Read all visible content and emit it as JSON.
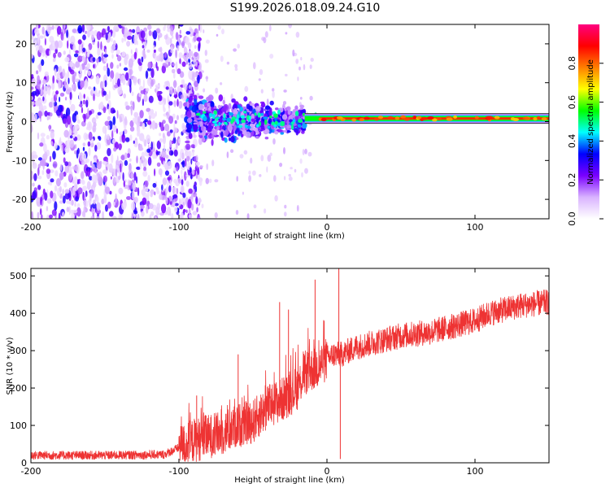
{
  "figure": {
    "title": "S199.2026.018.09.24.G10"
  },
  "chart_data": [
    {
      "type": "heatmap",
      "name": "spectrogram",
      "title": "",
      "xlabel": "Height of straight line (km)",
      "ylabel": "Frequency (Hz)",
      "xlim": [
        -200,
        150
      ],
      "ylim": [
        -25,
        25
      ],
      "xticks": [
        -200,
        -100,
        0,
        100
      ],
      "xtick_labels": [
        "-200",
        "-100",
        "0",
        "100"
      ],
      "yticks": [
        -20,
        -10,
        0,
        10,
        20
      ],
      "ytick_labels": [
        "-20",
        "-10",
        "0",
        "10",
        "20"
      ],
      "colorbar": {
        "label": "Normalized spectral amplitude",
        "range": [
          0,
          1
        ],
        "ticks": [
          0,
          0.2,
          0.4,
          0.6,
          0.8
        ],
        "tick_labels": [
          "0.0",
          "0.2",
          "0.4",
          "0.6",
          "0.8"
        ],
        "colors": [
          "#ffffff",
          "#d9b3ff",
          "#7a00ff",
          "#0000ff",
          "#00ffff",
          "#00ff00",
          "#ffff00",
          "#ff8000",
          "#ff0000",
          "#ff0080"
        ]
      },
      "regions": [
        {
          "x_range": [
            -200,
            -95
          ],
          "description_level": "noise",
          "amplitude": 0.15
        },
        {
          "x_range": [
            -95,
            -15
          ],
          "center_hz": 0.5,
          "spread_hz": 4,
          "amplitude": 0.3
        },
        {
          "x_range": [
            -15,
            150
          ],
          "center_hz": 0.8,
          "spread_hz": 0.7,
          "amplitude": 0.85
        }
      ],
      "line_value_hz": 0.8
    },
    {
      "type": "line",
      "name": "snr",
      "title": "",
      "xlabel": "Height of straight line (km)",
      "ylabel": "SNR (10 * v/v)",
      "xlim": [
        -200,
        150
      ],
      "ylim": [
        0,
        520
      ],
      "xticks": [
        -200,
        -100,
        0,
        100
      ],
      "xtick_labels": [
        "-200",
        "-100",
        "0",
        "100"
      ],
      "yticks": [
        0,
        100,
        200,
        300,
        400,
        500
      ],
      "ytick_labels": [
        "0",
        "100",
        "200",
        "300",
        "400",
        "500"
      ],
      "color": "#ee3333",
      "series": [
        {
          "name": "SNR trend",
          "x": [
            -200,
            -150,
            -110,
            -100,
            -90,
            -80,
            -70,
            -60,
            -50,
            -40,
            -30,
            -20,
            -15,
            -10,
            -5,
            0,
            5,
            10,
            20,
            30,
            40,
            50,
            60,
            70,
            80,
            90,
            100,
            110,
            120,
            130,
            140,
            150
          ],
          "y": [
            20,
            20,
            22,
            40,
            60,
            70,
            80,
            100,
            110,
            150,
            170,
            200,
            240,
            250,
            260,
            280,
            290,
            290,
            310,
            320,
            330,
            340,
            345,
            350,
            360,
            370,
            380,
            400,
            410,
            420,
            425,
            430
          ]
        }
      ],
      "spikes": [
        {
          "x": -88,
          "y": 180
        },
        {
          "x": -60,
          "y": 290
        },
        {
          "x": -32,
          "y": 430
        },
        {
          "x": -26,
          "y": 410
        },
        {
          "x": -8,
          "y": 490
        },
        {
          "x": 8,
          "y": 520
        },
        {
          "x": 9,
          "y": 10
        }
      ]
    }
  ]
}
